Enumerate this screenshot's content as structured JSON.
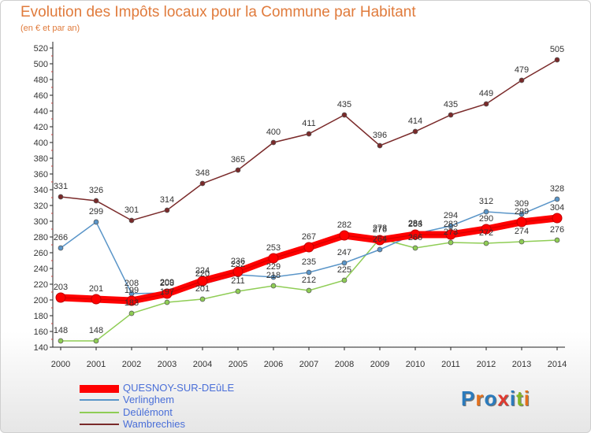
{
  "header": {
    "title": "Evolution des Impôts locaux pour la Commune par Habitant",
    "subtitle": "(en € et par an)"
  },
  "logo": {
    "text": "Proxiti",
    "colors": [
      "#2b7bbd",
      "#e4711d",
      "#2b7bbd",
      "#e03a2f",
      "#2b7bbd",
      "#83b726",
      "#e4711d"
    ]
  },
  "chart_data": {
    "type": "line",
    "title": "Evolution des Impôts locaux pour la Commune par Habitant",
    "subtitle": "(en € et par an)",
    "xlabel": "",
    "ylabel": "",
    "x": [
      "2000",
      "2001",
      "2002",
      "2003",
      "2004",
      "2005",
      "2006",
      "2007",
      "2008",
      "2009",
      "2010",
      "2011",
      "2012",
      "2013",
      "2014"
    ],
    "ylim": [
      140,
      520
    ],
    "ystep": 20,
    "grid": false,
    "legend_position": "bottom-left",
    "series": [
      {
        "name": "QUESNOY-SUR-DEûLE",
        "color": "#ff0000",
        "values": [
          203,
          201,
          199,
          208,
          224,
          236,
          253,
          267,
          282,
          276,
          283,
          283,
          290,
          299,
          304
        ],
        "labels": [
          "203",
          "201",
          "199",
          "208",
          "224",
          "236",
          "253",
          "267",
          "282",
          "276",
          "283",
          "283",
          "290",
          "299",
          "304"
        ],
        "emphasis": true
      },
      {
        "name": "Verlinghem",
        "color": "#5a95c8",
        "values": [
          266,
          299,
          208,
          209,
          220,
          232,
          229,
          235,
          247,
          264,
          284,
          294,
          312,
          309,
          328
        ],
        "labels": [
          "266",
          "299",
          "208",
          "209",
          "220",
          "232",
          "229",
          "235",
          "247",
          "264",
          "284",
          "294",
          "312",
          "309",
          "328"
        ]
      },
      {
        "name": "Deûlémont",
        "color": "#8fcd55",
        "values": [
          148,
          148,
          183,
          197,
          201,
          211,
          218,
          212,
          225,
          278,
          266,
          273,
          272,
          274,
          276
        ],
        "labels": [
          "148",
          "148",
          "183",
          "197",
          "201",
          "211",
          "218",
          "212",
          "225",
          "278",
          "266",
          "273",
          "272",
          "274",
          "276"
        ]
      },
      {
        "name": "Wambrechies",
        "color": "#7a2a2a",
        "values": [
          331,
          326,
          301,
          314,
          348,
          365,
          400,
          411,
          435,
          396,
          414,
          435,
          449,
          479,
          505
        ],
        "labels": [
          "331",
          "326",
          "301",
          "314",
          "348",
          "365",
          "400",
          "411",
          "435",
          "396",
          "414",
          "435",
          "449",
          "479",
          "505"
        ]
      }
    ]
  }
}
